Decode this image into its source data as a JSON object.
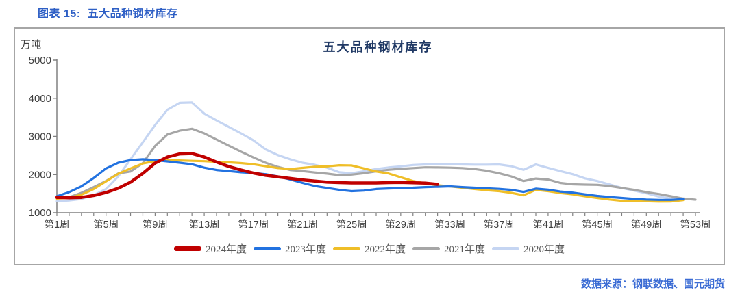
{
  "header": {
    "chart_no": "图表 15:",
    "title": "五大品种钢材库存"
  },
  "footer": {
    "source": "数据来源：钢联数据、国元期货"
  },
  "chart_data": {
    "type": "line",
    "title": "五大品种钢材库存",
    "unit_label": "万吨",
    "xlabel": "",
    "ylabel": "万吨",
    "ylim": [
      1000,
      5000
    ],
    "y_ticks": [
      5000,
      4000,
      3000,
      2000,
      1000
    ],
    "x_tick_weeks": [
      1,
      5,
      9,
      13,
      17,
      21,
      25,
      29,
      33,
      37,
      41,
      45,
      49,
      53
    ],
    "x_tick_labels": [
      "第1周",
      "第5周",
      "第9周",
      "第13周",
      "第17周",
      "第21周",
      "第25周",
      "第29周",
      "第33周",
      "第37周",
      "第41周",
      "第45周",
      "第49周",
      "第53周"
    ],
    "x_range_weeks": [
      1,
      53
    ],
    "grid": false,
    "legend_position": "bottom",
    "axis_color": "#808080",
    "tick_label_color": "#404040",
    "series": [
      {
        "name": "2024年度",
        "color": "#C00000",
        "width": 4.5,
        "start_week": 1,
        "values": [
          1400,
          1390,
          1400,
          1450,
          1530,
          1640,
          1800,
          2030,
          2300,
          2460,
          2540,
          2550,
          2460,
          2330,
          2210,
          2120,
          2040,
          1980,
          1940,
          1900,
          1860,
          1830,
          1800,
          1790,
          1780,
          1780,
          1780,
          1790,
          1795,
          1785,
          1775,
          1745
        ]
      },
      {
        "name": "2023年度",
        "color": "#2272E0",
        "width": 3.2,
        "start_week": 1,
        "values": [
          1430,
          1540,
          1690,
          1910,
          2160,
          2310,
          2380,
          2400,
          2380,
          2345,
          2310,
          2270,
          2180,
          2120,
          2090,
          2060,
          2040,
          2010,
          1950,
          1870,
          1780,
          1700,
          1650,
          1600,
          1565,
          1580,
          1620,
          1635,
          1645,
          1655,
          1670,
          1680,
          1690,
          1670,
          1655,
          1640,
          1625,
          1600,
          1545,
          1630,
          1605,
          1555,
          1525,
          1480,
          1440,
          1410,
          1385,
          1360,
          1345,
          1335,
          1335,
          1355
        ]
      },
      {
        "name": "2022年度",
        "color": "#EFBE28",
        "width": 3.2,
        "start_week": 1,
        "values": [
          1370,
          1390,
          1470,
          1620,
          1820,
          2020,
          2160,
          2290,
          2350,
          2380,
          2370,
          2360,
          2350,
          2335,
          2320,
          2300,
          2270,
          2220,
          2170,
          2145,
          2175,
          2205,
          2215,
          2245,
          2240,
          2160,
          2080,
          2030,
          1930,
          1830,
          1770,
          1720,
          1690,
          1655,
          1620,
          1590,
          1565,
          1520,
          1455,
          1600,
          1565,
          1515,
          1480,
          1430,
          1385,
          1345,
          1310,
          1300,
          1300,
          1290,
          1295,
          1330
        ]
      },
      {
        "name": "2021年度",
        "color": "#A6A6A6",
        "width": 3.2,
        "start_week": 1,
        "values": [
          1380,
          1405,
          1520,
          1670,
          1830,
          2030,
          2080,
          2300,
          2750,
          3050,
          3150,
          3200,
          3080,
          2920,
          2760,
          2600,
          2450,
          2310,
          2200,
          2120,
          2090,
          2055,
          2025,
          1985,
          2000,
          2035,
          2085,
          2125,
          2150,
          2170,
          2190,
          2185,
          2180,
          2170,
          2145,
          2100,
          2035,
          1950,
          1830,
          1895,
          1870,
          1780,
          1745,
          1735,
          1730,
          1700,
          1650,
          1600,
          1540,
          1490,
          1430,
          1370,
          1340
        ]
      },
      {
        "name": "2020年度",
        "color": "#C5D5F2",
        "width": 3.2,
        "start_week": 1,
        "values": [
          1300,
          1320,
          1360,
          1460,
          1620,
          1950,
          2400,
          2850,
          3300,
          3700,
          3880,
          3890,
          3600,
          3420,
          3250,
          3080,
          2900,
          2660,
          2510,
          2400,
          2310,
          2255,
          2180,
          2060,
          2035,
          2085,
          2145,
          2185,
          2215,
          2250,
          2265,
          2270,
          2270,
          2265,
          2260,
          2260,
          2265,
          2220,
          2125,
          2265,
          2175,
          2090,
          2010,
          1900,
          1830,
          1740,
          1650,
          1580,
          1510,
          1425,
          1370,
          1350
        ]
      }
    ]
  }
}
